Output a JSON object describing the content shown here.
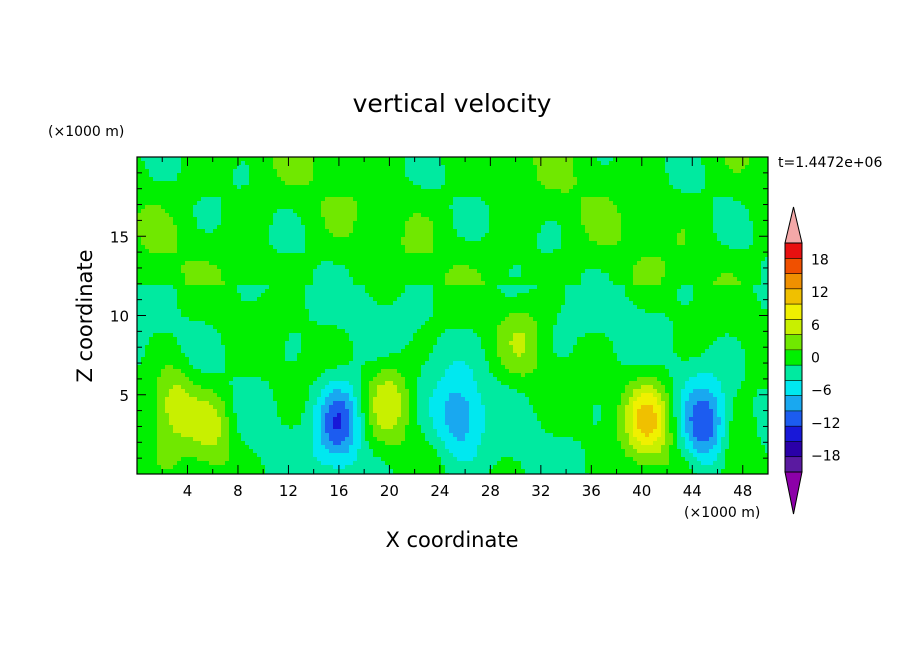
{
  "chart_data": {
    "type": "heatmap",
    "title": "vertical velocity",
    "xlabel": "X coordinate",
    "ylabel": "Z coordinate",
    "x_unit": "(×1000 m)",
    "y_unit": "(×1000 m)",
    "time_label": "t=1.4472e+06",
    "xlim": [
      0,
      50
    ],
    "ylim": [
      0,
      20
    ],
    "x_ticks": [
      4,
      8,
      12,
      16,
      20,
      24,
      28,
      32,
      36,
      40,
      44,
      48
    ],
    "y_ticks": [
      5,
      10,
      15
    ],
    "colorbar": {
      "levels": [
        -21,
        -18,
        -15,
        -12,
        -9,
        -6,
        -3,
        0,
        3,
        6,
        9,
        12,
        15,
        18,
        21
      ],
      "tick_values": [
        -18,
        -12,
        -6,
        0,
        6,
        12,
        18
      ],
      "tick_labels": [
        "−18",
        "−12",
        "−6",
        "0",
        "6",
        "12",
        "18"
      ],
      "colors": [
        "#5a1aa0",
        "#2a00a8",
        "#1818d8",
        "#1c5cf0",
        "#19a8f0",
        "#00e8f0",
        "#00eaa0",
        "#00f000",
        "#70e800",
        "#c8f000",
        "#f0f000",
        "#f0c000",
        "#f09000",
        "#f05000",
        "#e81010"
      ],
      "under_color": "#8c00a8",
      "over_color": "#f4a8a8",
      "extend": "both"
    },
    "features": [
      {
        "x": 3.0,
        "z": 4.5,
        "peak": 8,
        "description": "updraft"
      },
      {
        "x": 6.0,
        "z": 3.0,
        "peak": 7,
        "description": "updraft"
      },
      {
        "x": 16.0,
        "z": 3.3,
        "peak": -12,
        "description": "downdraft"
      },
      {
        "x": 20.0,
        "z": 4.8,
        "peak": 7,
        "description": "updraft"
      },
      {
        "x": 25.5,
        "z": 3.5,
        "peak": -8,
        "description": "downdraft"
      },
      {
        "x": 30.5,
        "z": 8.5,
        "peak": 4,
        "description": "updraft"
      },
      {
        "x": 40.5,
        "z": 3.5,
        "peak": 12,
        "description": "updraft"
      },
      {
        "x": 45.0,
        "z": 3.0,
        "peak": -11,
        "description": "downdraft"
      },
      {
        "x": 47.5,
        "z": 1.5,
        "peak": 5,
        "description": "updraft"
      }
    ]
  }
}
